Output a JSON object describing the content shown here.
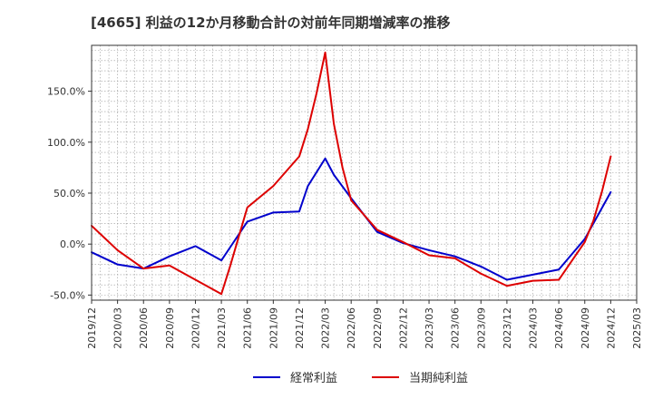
{
  "chart_data": {
    "type": "line",
    "title": "[4665]  利益の12か月移動合計の対前年同期増減率の推移",
    "xlabel": "",
    "ylabel": "",
    "x_ticks": [
      "2019/12",
      "2020/03",
      "2020/06",
      "2020/09",
      "2020/12",
      "2021/03",
      "2021/06",
      "2021/09",
      "2021/12",
      "2022/03",
      "2022/06",
      "2022/09",
      "2022/12",
      "2023/03",
      "2023/06",
      "2023/09",
      "2023/12",
      "2024/03",
      "2024/06",
      "2024/09",
      "2024/12",
      "2025/03"
    ],
    "y_ticks": [
      -50,
      0,
      50,
      100,
      150
    ],
    "y_tick_labels": [
      "-50.0%",
      "0.0%",
      "50.0%",
      "100.0%",
      "150.0%"
    ],
    "ylim": [
      -55,
      195
    ],
    "grid": true,
    "legend_position": "bottom-center",
    "colors": {
      "series1": "#0000cc",
      "series2": "#dd0000"
    },
    "series": [
      {
        "name": "経常利益",
        "color": "#0000cc",
        "points": [
          [
            "2019/12",
            -8
          ],
          [
            "2020/03",
            -20
          ],
          [
            "2020/06",
            -24
          ],
          [
            "2020/09",
            -12
          ],
          [
            "2020/12",
            -2
          ],
          [
            "2021/03",
            -16
          ],
          [
            "2021/06",
            22
          ],
          [
            "2021/09",
            31
          ],
          [
            "2021/12",
            32
          ],
          [
            "2022/01",
            57
          ],
          [
            "2022/03",
            84
          ],
          [
            "2022/04",
            68
          ],
          [
            "2022/06",
            45
          ],
          [
            "2022/09",
            12
          ],
          [
            "2022/12",
            1
          ],
          [
            "2023/03",
            -6
          ],
          [
            "2023/06",
            -12
          ],
          [
            "2023/09",
            -22
          ],
          [
            "2023/12",
            -35
          ],
          [
            "2024/03",
            -30
          ],
          [
            "2024/06",
            -25
          ],
          [
            "2024/09",
            5
          ],
          [
            "2024/12",
            51
          ]
        ]
      },
      {
        "name": "当期純利益",
        "color": "#dd0000",
        "points": [
          [
            "2019/12",
            18
          ],
          [
            "2020/03",
            -6
          ],
          [
            "2020/06",
            -24
          ],
          [
            "2020/09",
            -21
          ],
          [
            "2020/12",
            -35
          ],
          [
            "2021/03",
            -49
          ],
          [
            "2021/04",
            -22
          ],
          [
            "2021/06",
            36
          ],
          [
            "2021/09",
            57
          ],
          [
            "2021/12",
            86
          ],
          [
            "2022/01",
            113
          ],
          [
            "2022/02",
            148
          ],
          [
            "2022/03",
            188
          ],
          [
            "2022/04",
            118
          ],
          [
            "2022/05",
            75
          ],
          [
            "2022/06",
            43
          ],
          [
            "2022/09",
            14
          ],
          [
            "2022/12",
            2
          ],
          [
            "2023/03",
            -11
          ],
          [
            "2023/06",
            -14
          ],
          [
            "2023/09",
            -29
          ],
          [
            "2023/12",
            -41
          ],
          [
            "2024/03",
            -36
          ],
          [
            "2024/06",
            -35
          ],
          [
            "2024/09",
            2
          ],
          [
            "2024/10",
            23
          ],
          [
            "2024/11",
            52
          ],
          [
            "2024/12",
            86
          ]
        ]
      }
    ]
  }
}
